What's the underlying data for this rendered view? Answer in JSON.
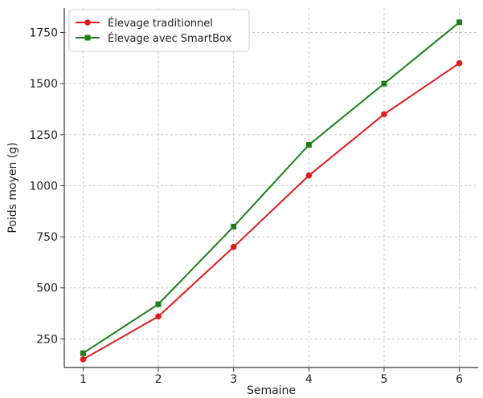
{
  "chart_data": {
    "type": "line",
    "xlabel": "Semaine",
    "ylabel": "Poids moyen (g)",
    "x": [
      1,
      2,
      3,
      4,
      5,
      6
    ],
    "xlim": [
      0.75,
      6.25
    ],
    "ylim": [
      110,
      1870
    ],
    "yticks": [
      250,
      500,
      750,
      1000,
      1250,
      1500,
      1750
    ],
    "grid": true,
    "legend_position": "top-left",
    "series": [
      {
        "name": "Élevage traditionnel",
        "color": "#dd1c1c",
        "marker": "circle",
        "values": [
          150,
          360,
          700,
          1050,
          1350,
          1600
        ]
      },
      {
        "name": "Élevage avec SmartBox",
        "color": "#1a7f1a",
        "marker": "square",
        "values": [
          180,
          420,
          800,
          1200,
          1500,
          1800
        ]
      }
    ]
  }
}
